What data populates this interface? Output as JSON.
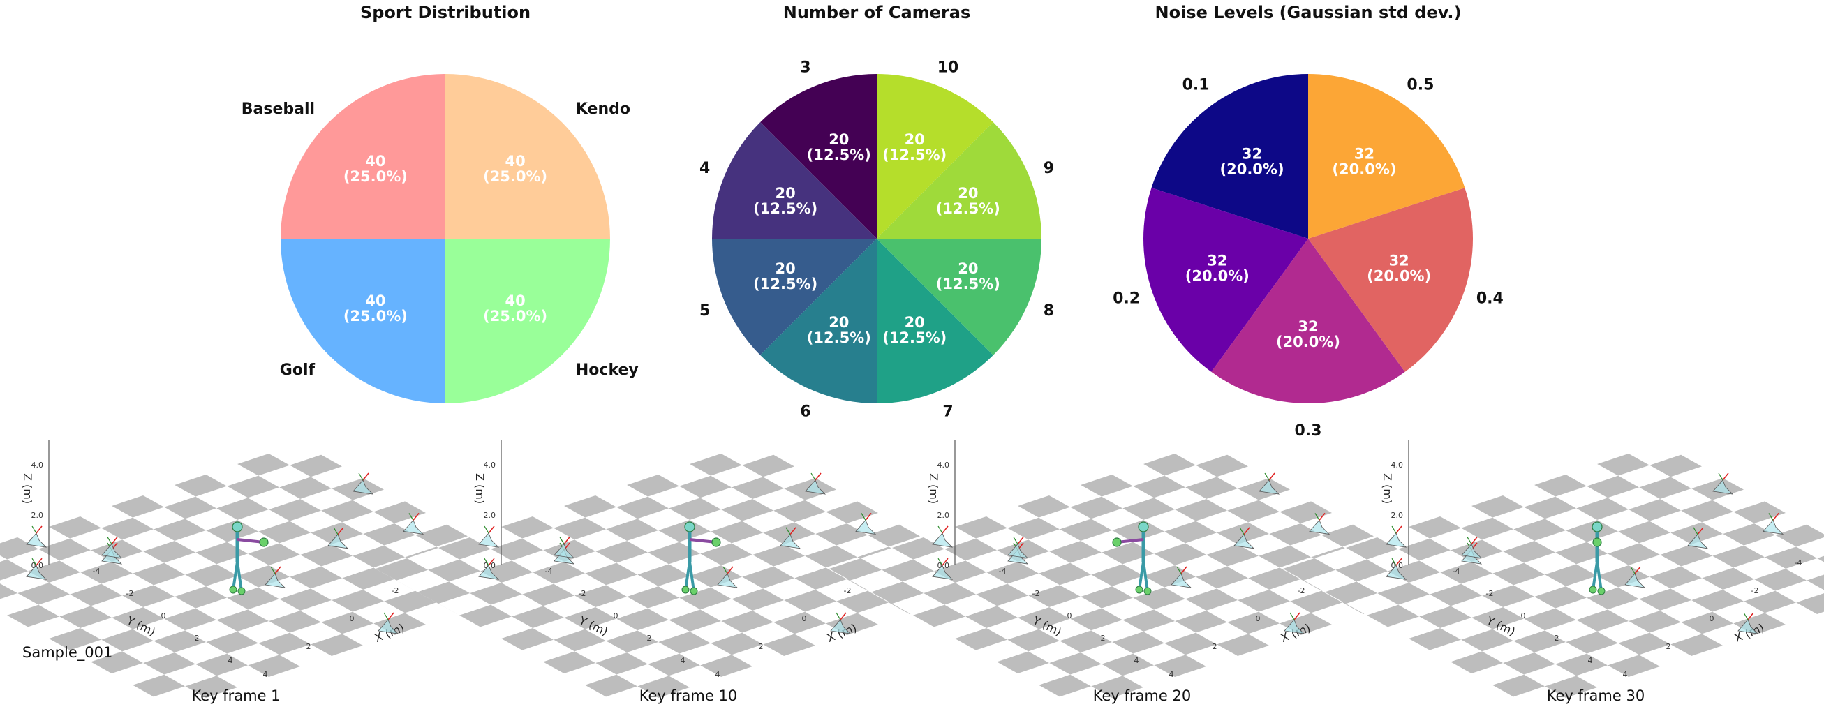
{
  "chart_data": [
    {
      "type": "pie",
      "title": "Sport Distribution",
      "labels": [
        "Baseball",
        "Kendo",
        "Golf",
        "Hockey"
      ],
      "values": [
        40,
        40,
        40,
        40
      ],
      "inner_text": [
        "40\n(25.0%)",
        "40\n(25.0%)",
        "40\n(25.0%)",
        "40\n(25.0%)"
      ],
      "colors": [
        "#ff9999",
        "#ffcc99",
        "#66b3ff",
        "#99ff99"
      ],
      "slice_order": [
        "Kendo",
        "Hockey",
        "Golf",
        "Baseball"
      ]
    },
    {
      "type": "pie",
      "title": "Number of Cameras",
      "labels": [
        "3",
        "4",
        "5",
        "6",
        "7",
        "8",
        "9",
        "10"
      ],
      "values": [
        20,
        20,
        20,
        20,
        20,
        20,
        20,
        20
      ],
      "inner_text": [
        "20\n(12.5%)",
        "20\n(12.5%)",
        "20\n(12.5%)",
        "20\n(12.5%)",
        "20\n(12.5%)",
        "20\n(12.5%)",
        "20\n(12.5%)",
        "20\n(12.5%)"
      ],
      "colors": [
        "#440154",
        "#46327e",
        "#365c8d",
        "#277f8e",
        "#1fa187",
        "#4ac16d",
        "#9fda3a",
        "#b5de2b"
      ]
    },
    {
      "type": "pie",
      "title": "Noise Levels (Gaussian std dev.)",
      "labels": [
        "0.1",
        "0.2",
        "0.3",
        "0.4",
        "0.5"
      ],
      "values": [
        32,
        32,
        32,
        32,
        32
      ],
      "inner_text": [
        "32\n(20.0%)",
        "32\n(20.0%)",
        "32\n(20.0%)",
        "32\n(20.0%)",
        "32\n(20.0%)"
      ],
      "colors": [
        "#0d0887",
        "#6a00a8",
        "#b12a90",
        "#e16462",
        "#fca636"
      ]
    },
    {
      "type": "3d-scene",
      "sample_label": "Sample_001",
      "panels": [
        {
          "title": "Key frame 1"
        },
        {
          "title": "Key frame 10"
        },
        {
          "title": "Key frame 20"
        },
        {
          "title": "Key frame 30"
        }
      ],
      "xlabel": "X (m)",
      "ylabel": "Y (m)",
      "zlabel": "Z (m)",
      "z_ticks": [
        "0.0",
        "2.0",
        "4.0"
      ],
      "x_ticks": [
        "4",
        "2",
        "0",
        "-2",
        "-4"
      ],
      "y_ticks": [
        "4",
        "2",
        "0",
        "-2",
        "-4"
      ]
    }
  ]
}
